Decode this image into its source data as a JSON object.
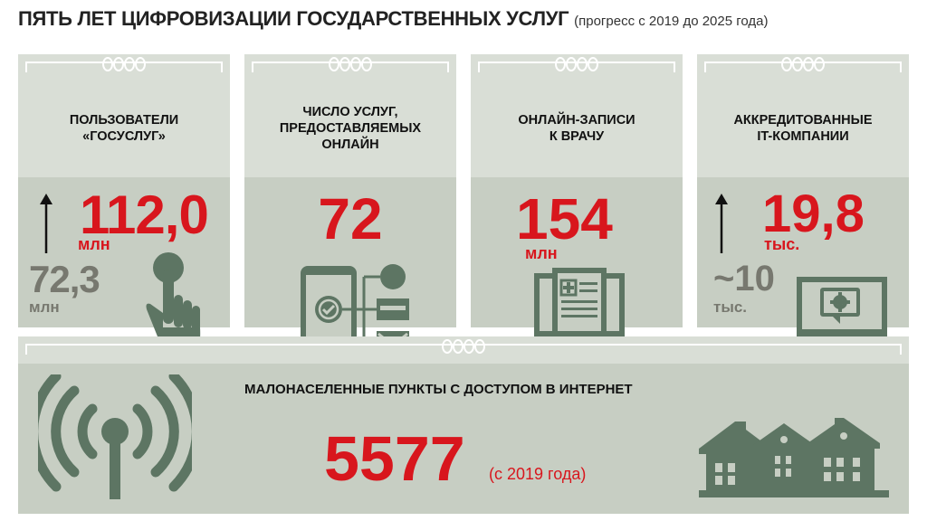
{
  "header": {
    "title": "ПЯТЬ ЛЕТ ЦИФРОВИЗАЦИИ ГОСУДАРСТВЕННЫХ УСЛУГ",
    "subtitle": "(прогресс с 2019 до 2025 года)"
  },
  "cards": [
    {
      "title_line1": "ПОЛЬЗОВАТЕЛИ",
      "title_line2": "«ГОСУСЛУГ»",
      "value": "112,0",
      "unit": "млн",
      "prev_value": "72,3",
      "prev_unit": "млн",
      "icon": "hand-pointer-icon"
    },
    {
      "title_line1": "ЧИСЛО УСЛУГ,",
      "title_line2": "ПРЕДОСТАВЛЯЕМЫХ",
      "title_line3": "ОНЛАЙН",
      "value": "72",
      "icon": "smartphone-services-icon"
    },
    {
      "title_line1": "ОНЛАЙН-ЗАПИСИ",
      "title_line2": "К ВРАЧУ",
      "value": "154",
      "unit": "млн",
      "icon": "medical-record-monitor-icon"
    },
    {
      "title_line1": "АККРЕДИТОВАННЫЕ",
      "title_line2": "IT-КОМПАНИИ",
      "value": "19,8",
      "unit": "тыс.",
      "prev_value": "~10",
      "prev_unit": "тыс.",
      "icon": "monitor-gear-icon"
    }
  ],
  "bottom": {
    "title": "МАЛОНАСЕЛЕННЫЕ ПУНКТЫ С ДОСТУПОМ В ИНТЕРНЕТ",
    "value": "5577",
    "note": "(с 2019 года)",
    "icons": [
      "antenna-signal-icon",
      "houses-icon"
    ]
  },
  "colors": {
    "accent_red": "#d8161d",
    "panel_light": "#d9ded6",
    "panel_dark": "#c7cec3",
    "icon_green": "#5d7563",
    "grey_text": "#77786f"
  }
}
